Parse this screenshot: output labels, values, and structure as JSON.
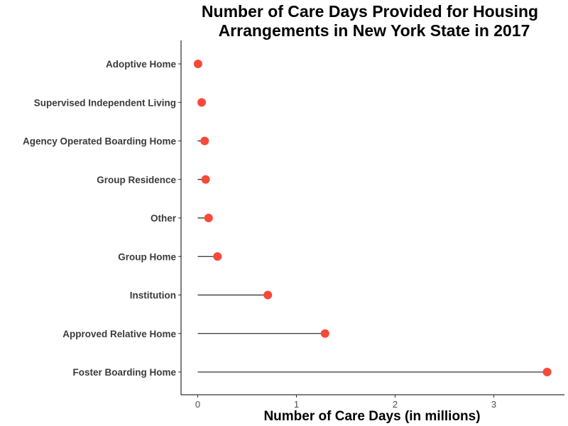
{
  "chart_data": {
    "type": "scatter",
    "subtype": "lollipop",
    "title_lines": [
      "Number of Care Days Provided for Housing",
      "Arrangements in New York State in 2017"
    ],
    "xlabel": "Number of Care Days (in millions)",
    "ylabel": "",
    "xlim": [
      -0.17,
      3.7
    ],
    "x_ticks": [
      0,
      1,
      2,
      3
    ],
    "categories": [
      "Adoptive Home",
      "Supervised Independent Living",
      "Agency Operated Boarding Home",
      "Group Residence",
      "Other",
      "Group Home",
      "Institution",
      "Approved Relative Home",
      "Foster Boarding Home"
    ],
    "values": [
      0.003,
      0.04,
      0.07,
      0.08,
      0.11,
      0.2,
      0.71,
      1.29,
      3.54
    ],
    "point_color": "#f8493a",
    "stem_color": "#000000",
    "grid": false
  }
}
